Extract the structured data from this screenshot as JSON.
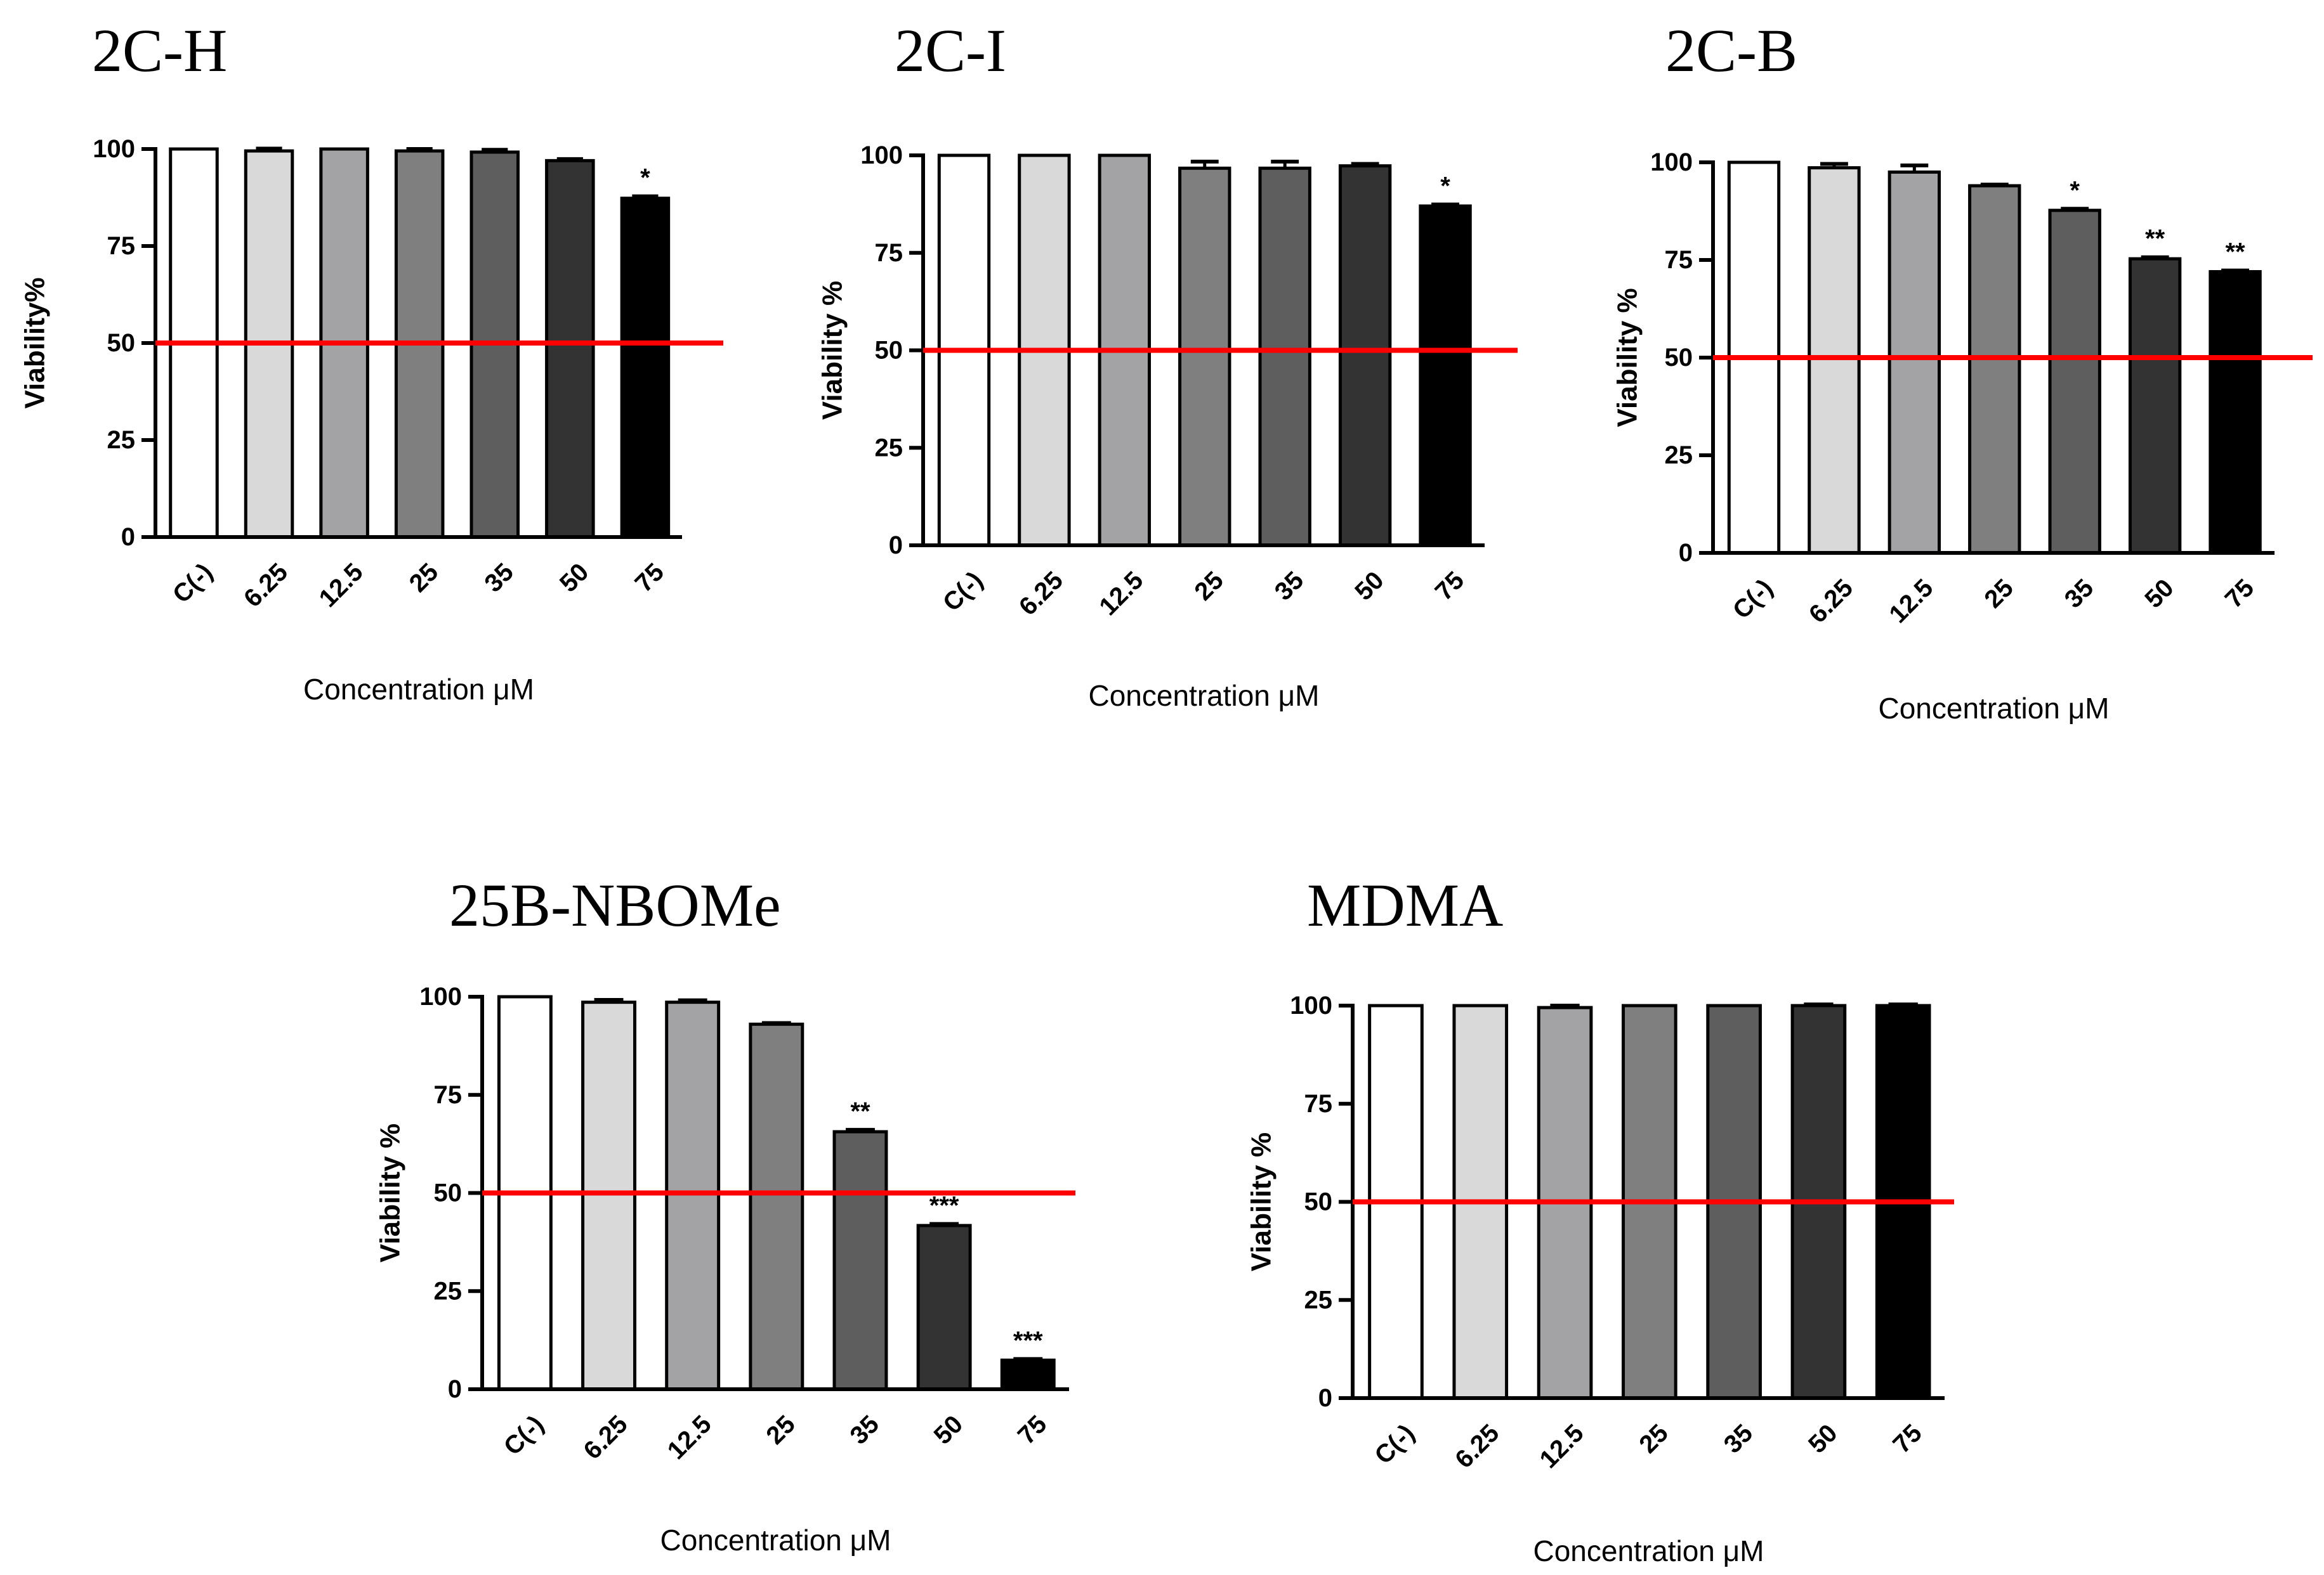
{
  "figure": {
    "threshold_line": {
      "value": 50,
      "color": "#ff0000"
    },
    "bar_colors": [
      "#ffffff",
      "#d9d9d9",
      "#a3a3a6",
      "#7f7f7f",
      "#5e5e5e",
      "#333333",
      "#000000"
    ]
  },
  "chart_data": [
    {
      "type": "bar",
      "title": "2C-H",
      "ylabel": "Viability%",
      "xlabel": "Concentration μM",
      "categories": [
        "C(-)",
        "6.25",
        "12.5",
        "25",
        "35",
        "50",
        "75"
      ],
      "values": [
        100,
        99.5,
        100,
        99.5,
        99.2,
        97,
        87.3
      ],
      "errors": [
        0,
        0.6,
        0,
        0.5,
        0.6,
        0.4,
        0.5
      ],
      "significance": [
        "",
        "",
        "",
        "",
        "",
        "",
        "*"
      ],
      "ylim": [
        0,
        100
      ],
      "yticks": [
        "0",
        "25",
        "50",
        "75",
        "100"
      ]
    },
    {
      "type": "bar",
      "title": "2C-I",
      "ylabel": "Viability %",
      "xlabel": "Concentration μM",
      "categories": [
        "C(-)",
        "6.25",
        "12.5",
        "25",
        "35",
        "50",
        "75"
      ],
      "values": [
        100,
        100,
        100,
        96.7,
        96.7,
        97.3,
        87
      ],
      "errors": [
        0,
        0,
        0,
        1.7,
        1.7,
        0.5,
        0.4
      ],
      "significance": [
        "",
        "",
        "",
        "",
        "",
        "",
        "*"
      ],
      "ylim": [
        0,
        100
      ],
      "yticks": [
        "0",
        "25",
        "50",
        "75",
        "100"
      ]
    },
    {
      "type": "bar",
      "title": "2C-B",
      "ylabel": "Viability %",
      "xlabel": "Concentration μM",
      "categories": [
        "C(-)",
        "6.25",
        "12.5",
        "25",
        "35",
        "50",
        "75"
      ],
      "values": [
        100,
        98.6,
        97.5,
        94,
        87.7,
        75.3,
        72
      ],
      "errors": [
        0,
        1,
        1.7,
        0.3,
        0.4,
        0.4,
        0.3
      ],
      "significance": [
        "",
        "",
        "",
        "",
        "*",
        "**",
        "**"
      ],
      "ylim": [
        0,
        100
      ],
      "yticks": [
        "0",
        "25",
        "50",
        "75",
        "100"
      ]
    },
    {
      "type": "bar",
      "title": "25B-NBOMe",
      "ylabel": "Viability %",
      "xlabel": "Concentration μM",
      "categories": [
        "C(-)",
        "6.25",
        "12.5",
        "25",
        "35",
        "50",
        "75"
      ],
      "values": [
        100,
        98.6,
        98.6,
        93,
        65.6,
        41.7,
        7.4
      ],
      "errors": [
        0,
        0.6,
        0.5,
        0.3,
        0.5,
        0.4,
        0.3
      ],
      "significance": [
        "",
        "",
        "",
        "",
        "**",
        "***",
        "***"
      ],
      "ylim": [
        0,
        100
      ],
      "yticks": [
        "0",
        "25",
        "50",
        "75",
        "100"
      ]
    },
    {
      "type": "bar",
      "title": "MDMA",
      "ylabel": "Viability %",
      "xlabel": "Concentration μM",
      "categories": [
        "C(-)",
        "6.25",
        "12.5",
        "25",
        "35",
        "50",
        "75"
      ],
      "values": [
        100,
        100,
        99.5,
        100,
        100,
        100,
        100
      ],
      "errors": [
        0,
        0,
        0.5,
        0,
        0,
        0.3,
        0.3
      ],
      "significance": [
        "",
        "",
        "",
        "",
        "",
        "",
        ""
      ],
      "ylim": [
        0,
        100
      ],
      "yticks": [
        "0",
        "25",
        "50",
        "75",
        "100"
      ]
    }
  ]
}
